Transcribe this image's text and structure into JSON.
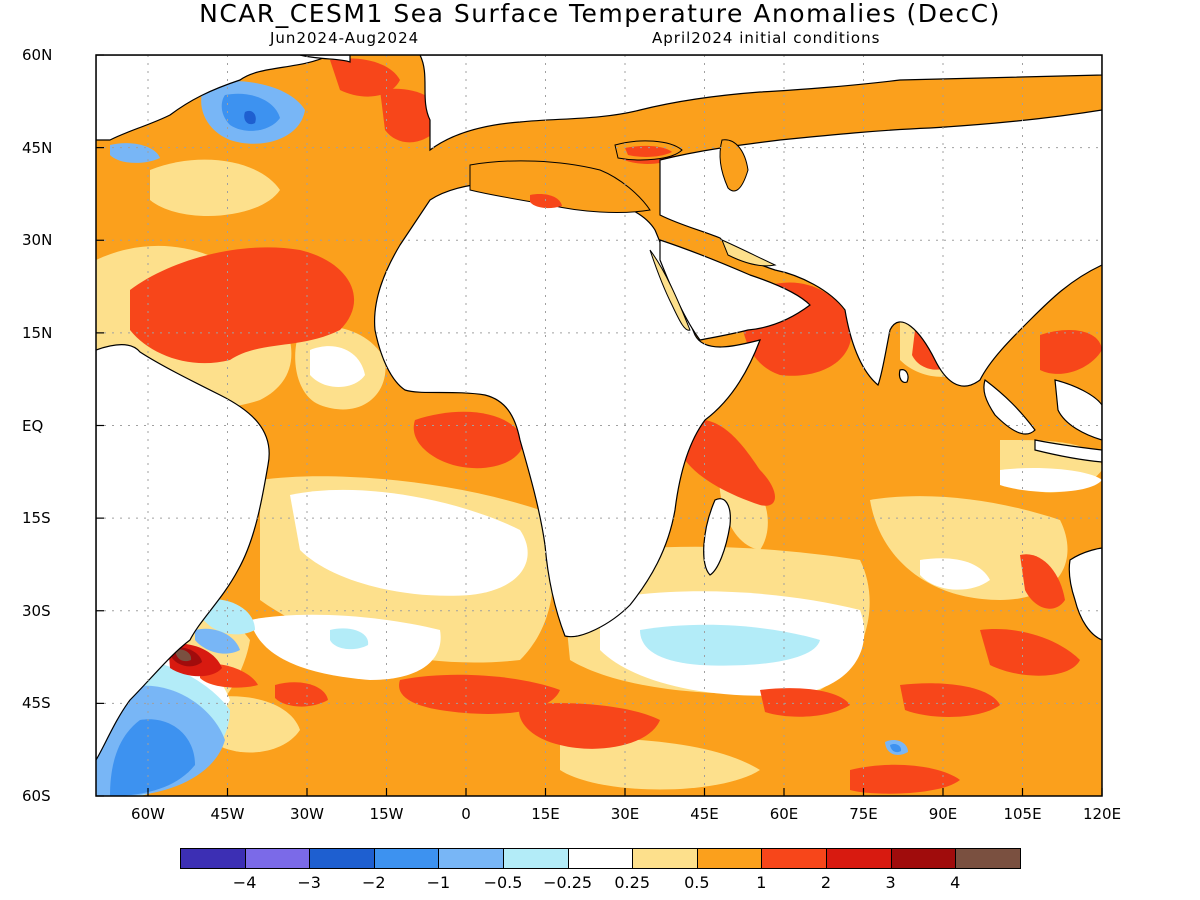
{
  "title": "NCAR_CESM1 Sea Surface Temperature Anomalies (DecC)",
  "period": "Jun2024-Aug2024",
  "initial_conditions": "April2024 initial conditions",
  "lat_labels": [
    "60N",
    "45N",
    "30N",
    "15N",
    "EQ",
    "15S",
    "30S",
    "45S",
    "60S"
  ],
  "lon_labels": [
    "60W",
    "45W",
    "30W",
    "15W",
    "0",
    "15E",
    "30E",
    "45E",
    "60E",
    "75E",
    "90E",
    "105E",
    "120E"
  ],
  "colorbar": {
    "colors": [
      "#3c2fb4",
      "#7b6ae8",
      "#1e5fd0",
      "#3d92f0",
      "#78b6f6",
      "#b3ecf8",
      "#ffffff",
      "#fde08c",
      "#fba01c",
      "#f7461a",
      "#d81a10",
      "#a00c0c",
      "#7a5040"
    ],
    "labels": [
      "-4",
      "-3",
      "-2",
      "-1",
      "-0.5",
      "-0.25",
      "0.25",
      "0.5",
      "1",
      "2",
      "3",
      "4"
    ]
  },
  "colors": {
    "land": "#ffffff",
    "ocean_base": "#fba01c",
    "grid": "#a0a0a0"
  }
}
